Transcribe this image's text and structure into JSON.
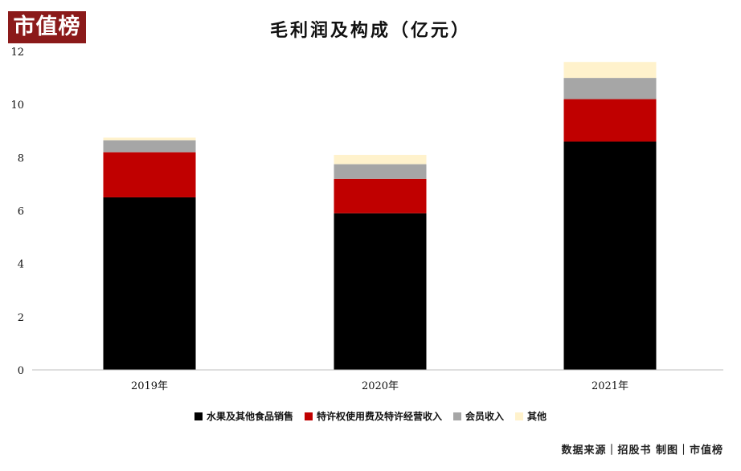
{
  "logo": {
    "text": "市值榜"
  },
  "source": {
    "text": "数据来源｜招股书  制图｜市值榜"
  },
  "colors": {
    "fruit_sales": "#000000",
    "franchise": "#c00000",
    "membership": "#a6a6a6",
    "other": "#fff2cc",
    "axis": "#bfbfbf",
    "text": "#111111"
  },
  "chart_data": {
    "type": "bar",
    "stacked": true,
    "title": "毛利润及构成（亿元）",
    "categories": [
      "2019年",
      "2020年",
      "2021年"
    ],
    "ylim": [
      0,
      12
    ],
    "yticks": [
      0,
      2,
      4,
      6,
      8,
      10,
      12
    ],
    "grid": false,
    "legend_position": "bottom",
    "series": [
      {
        "name": "水果及其他食品销售",
        "color": "#000000",
        "values": [
          6.5,
          5.9,
          8.6
        ]
      },
      {
        "name": "特许权使用费及特许经营收入",
        "color": "#c00000",
        "values": [
          1.7,
          1.3,
          1.6
        ]
      },
      {
        "name": "会员收入",
        "color": "#a6a6a6",
        "values": [
          0.45,
          0.55,
          0.8
        ]
      },
      {
        "name": "其他",
        "color": "#fff2cc",
        "values": [
          0.1,
          0.35,
          0.6
        ]
      }
    ]
  }
}
